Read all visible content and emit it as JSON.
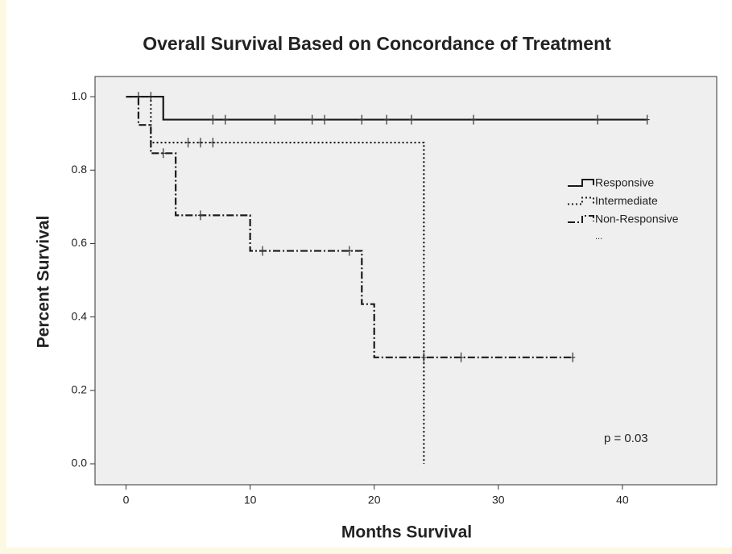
{
  "chart_data": {
    "type": "km",
    "title": "Overall Survival Based on Concordance of Treatment",
    "x_label": "Months Survival",
    "y_label": "Percent Survival",
    "xlim": [
      -2.5,
      47.6
    ],
    "ylim": [
      -0.057,
      1.055
    ],
    "xticks": [
      0,
      10,
      20,
      30,
      40
    ],
    "yticks": [
      {
        "value": 0,
        "label": "0.0"
      },
      0.2,
      0.4,
      0.6,
      0.8,
      {
        "value": 1,
        "label": "1.0"
      }
    ],
    "series": [
      {
        "name": "Responsive",
        "color": "#1a1a1a",
        "dash": "",
        "width": 2.2,
        "times": [
          0,
          3
        ],
        "values": [
          1.0,
          0.9375
        ],
        "censor_times": [
          1,
          2,
          7,
          8,
          12,
          15,
          16,
          19,
          21,
          23,
          28,
          38,
          42
        ],
        "censor_values": [
          1.0,
          1.0,
          0.9375,
          0.9375,
          0.9375,
          0.9375,
          0.9375,
          0.9375,
          0.9375,
          0.9375,
          0.9375,
          0.9375,
          0.9375
        ]
      },
      {
        "name": "Intermediate",
        "color": "#1a1a1a",
        "dash": "2,3",
        "width": 2.2,
        "times": [
          0,
          2,
          24
        ],
        "values": [
          1.0,
          0.875,
          0.0
        ],
        "censor_times": [
          5,
          6,
          7
        ],
        "censor_values": [
          0.875,
          0.875,
          0.875
        ]
      },
      {
        "name": "Non-Responsive",
        "color": "#1a1a1a",
        "dash": "9,3,2,3",
        "width": 2.2,
        "times": [
          0,
          1,
          2,
          4,
          10,
          19,
          20
        ],
        "values": [
          1.0,
          0.923,
          0.846,
          0.677,
          0.58,
          0.435,
          0.29
        ],
        "censor_times": [
          3,
          6,
          11,
          18,
          24,
          27,
          36
        ],
        "censor_values": [
          0.846,
          0.677,
          0.58,
          0.58,
          0.29,
          0.29,
          0.29
        ]
      }
    ],
    "legend_more": "...",
    "annotation": "p = 0.03"
  }
}
